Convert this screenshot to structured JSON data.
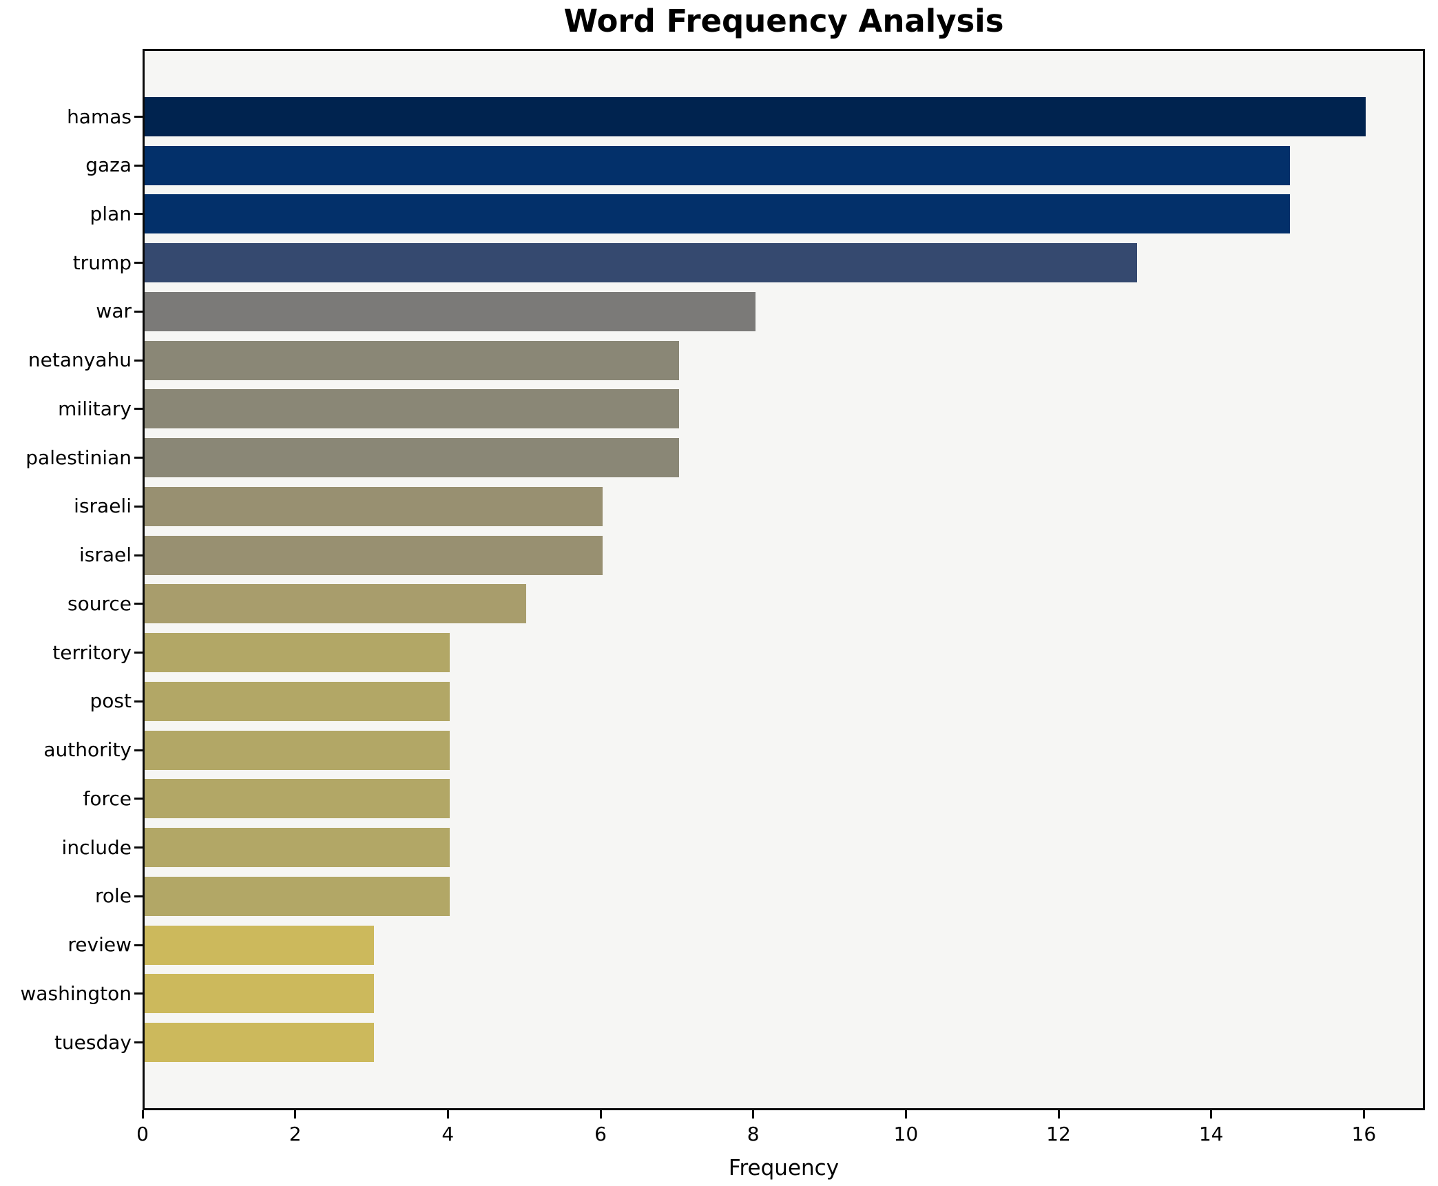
{
  "chart_data": {
    "type": "bar",
    "orientation": "horizontal",
    "title": "Word Frequency Analysis",
    "xlabel": "Frequency",
    "ylabel": "",
    "categories": [
      "hamas",
      "gaza",
      "plan",
      "trump",
      "war",
      "netanyahu",
      "military",
      "palestinian",
      "israeli",
      "israel",
      "source",
      "territory",
      "post",
      "authority",
      "force",
      "include",
      "role",
      "review",
      "washington",
      "tuesday"
    ],
    "values": [
      16,
      15,
      15,
      13,
      8,
      7,
      7,
      7,
      6,
      6,
      5,
      4,
      4,
      4,
      4,
      4,
      4,
      3,
      3,
      3
    ],
    "bar_colors": [
      "#00234f",
      "#03306a",
      "#03306a",
      "#35496f",
      "#7b7a78",
      "#8a8776",
      "#8a8776",
      "#8a8776",
      "#989071",
      "#989071",
      "#a89d6c",
      "#b2a766",
      "#b2a766",
      "#b2a766",
      "#b2a766",
      "#b2a766",
      "#b2a766",
      "#ccb95c",
      "#ccb95c",
      "#ccb95c"
    ],
    "x_ticks": [
      0,
      2,
      4,
      6,
      8,
      10,
      12,
      14,
      16
    ],
    "xlim": [
      0,
      16.8
    ],
    "grid": false,
    "legend": false,
    "plot_background": "#f6f6f4",
    "figure_background": "#ffffff",
    "spine_color": "#0a0a0a",
    "text_color": "#000000"
  }
}
